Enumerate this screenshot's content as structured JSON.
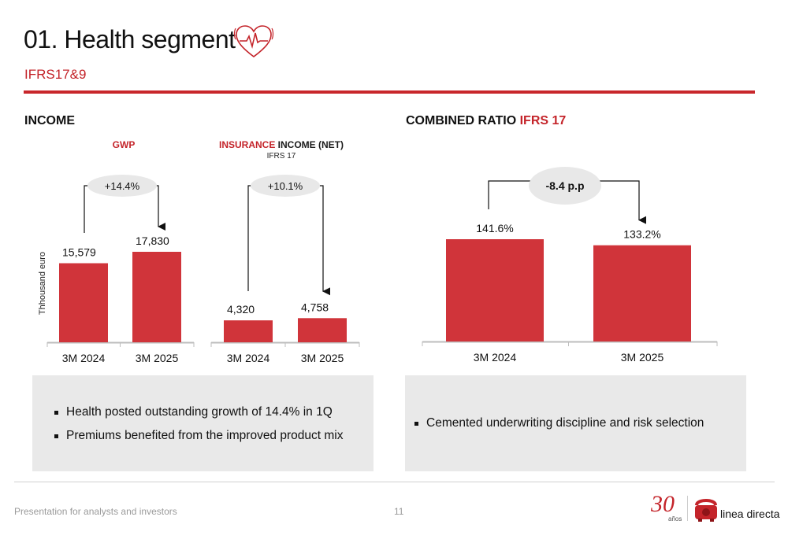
{
  "header": {
    "title": "01. Health segment",
    "subtitle": "IFRS17&9"
  },
  "income": {
    "heading": "INCOME",
    "gwp_title": "GWP",
    "ins_title_red": "INSURANCE",
    "ins_title_black": " INCOME (NET)",
    "ins_subtitle": "IFRS 17",
    "ylabel": "Thhousand euro",
    "bullets": [
      "Health posted outstanding growth of 14.4% in 1Q",
      "Premiums benefited from the improved product mix"
    ]
  },
  "combined": {
    "heading_black": "COMBINED RATIO ",
    "heading_red": "IFRS 17",
    "bullets": [
      "Cemented underwriting discipline and risk selection"
    ]
  },
  "chart_data": [
    {
      "type": "bar",
      "title": "GWP",
      "ylabel": "Thhousand euro",
      "categories": [
        "3M 2024",
        "3M 2025"
      ],
      "values": [
        15579,
        17830
      ],
      "labels": [
        "15,579",
        "17,830"
      ],
      "change": "+14.4%",
      "color": "#d0343a"
    },
    {
      "type": "bar",
      "title": "INSURANCE INCOME (NET)",
      "subtitle": "IFRS 17",
      "categories": [
        "3M 2024",
        "3M 2025"
      ],
      "values": [
        4320,
        4758
      ],
      "labels": [
        "4,320",
        "4,758"
      ],
      "change": "+10.1%",
      "color": "#d0343a"
    },
    {
      "type": "bar",
      "title": "COMBINED RATIO IFRS 17",
      "categories": [
        "3M 2024",
        "3M 2025"
      ],
      "values": [
        141.6,
        133.2
      ],
      "labels": [
        "141.6%",
        "133.2%"
      ],
      "change": "-8.4 p.p",
      "color": "#d0343a"
    }
  ],
  "footer": {
    "text": "Presentation for analysts and investors",
    "page": "11",
    "anniversary_number": "30",
    "anniversary_word": "años",
    "brand": "linea directa"
  }
}
